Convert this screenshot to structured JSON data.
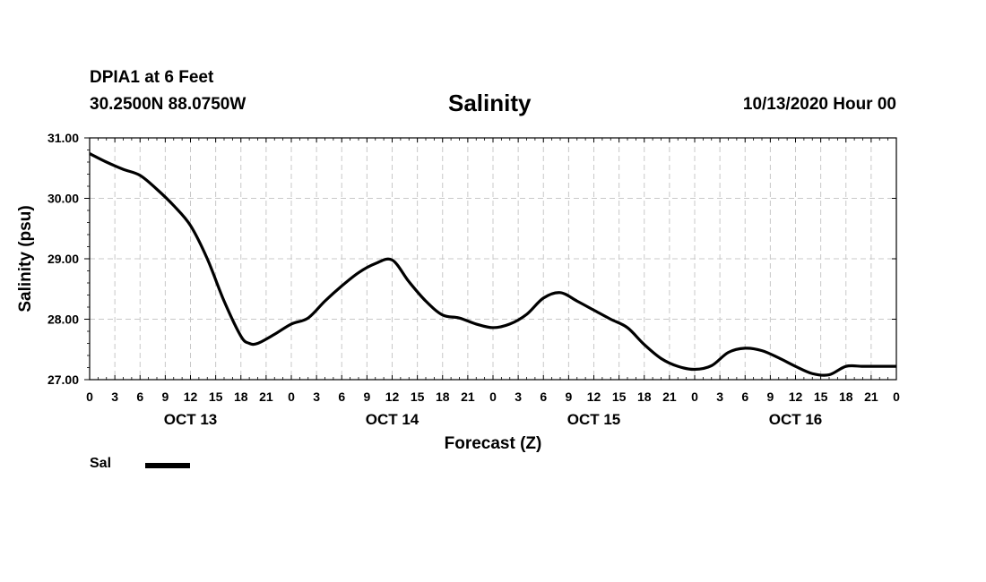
{
  "header": {
    "station": "DPIA1 at 6 Feet",
    "coords": "30.2500N 88.0750W",
    "title": "Salinity",
    "timestamp": "10/13/2020 Hour 00"
  },
  "legend": {
    "label": "Sal",
    "color": "#000000"
  },
  "chart_data": {
    "type": "line",
    "title": "Salinity",
    "xlabel": "Forecast (Z)",
    "ylabel": "Salinity (psu)",
    "ylim": [
      27.0,
      31.0
    ],
    "xlim": [
      0,
      96
    ],
    "grid": true,
    "yticks": [
      "27.00",
      "28.00",
      "29.00",
      "30.00",
      "31.00"
    ],
    "ytick_values": [
      27,
      28,
      29,
      30,
      31
    ],
    "xtick_labels": [
      "0",
      "3",
      "6",
      "9",
      "12",
      "15",
      "18",
      "21",
      "0",
      "3",
      "6",
      "9",
      "12",
      "15",
      "18",
      "21",
      "0",
      "3",
      "6",
      "9",
      "12",
      "15",
      "18",
      "21",
      "0",
      "3",
      "6",
      "9",
      "12",
      "15",
      "18",
      "21",
      "0"
    ],
    "day_labels": [
      {
        "label": "OCT 13",
        "hour": 12
      },
      {
        "label": "OCT 14",
        "hour": 36
      },
      {
        "label": "OCT 15",
        "hour": 60
      },
      {
        "label": "OCT 16",
        "hour": 84
      }
    ],
    "series": [
      {
        "name": "Sal",
        "x": [
          0,
          2,
          4,
          6,
          8,
          10,
          12,
          14,
          16,
          18,
          19,
          20,
          22,
          24,
          26,
          28,
          30,
          32,
          34,
          36,
          38,
          40,
          42,
          44,
          46,
          48,
          50,
          52,
          54,
          56,
          58,
          60,
          62,
          64,
          66,
          68,
          70,
          72,
          74,
          76,
          78,
          80,
          82,
          84,
          86,
          88,
          90,
          92,
          94,
          96
        ],
        "values": [
          30.74,
          30.6,
          30.48,
          30.38,
          30.15,
          29.88,
          29.55,
          29.0,
          28.3,
          27.72,
          27.6,
          27.6,
          27.75,
          27.92,
          28.02,
          28.3,
          28.55,
          28.77,
          28.92,
          28.98,
          28.62,
          28.3,
          28.07,
          28.02,
          27.92,
          27.86,
          27.92,
          28.08,
          28.35,
          28.44,
          28.3,
          28.15,
          28.0,
          27.86,
          27.58,
          27.35,
          27.22,
          27.17,
          27.23,
          27.45,
          27.52,
          27.48,
          27.36,
          27.22,
          27.1,
          27.08,
          27.22,
          27.22,
          27.22,
          27.22
        ]
      }
    ]
  }
}
